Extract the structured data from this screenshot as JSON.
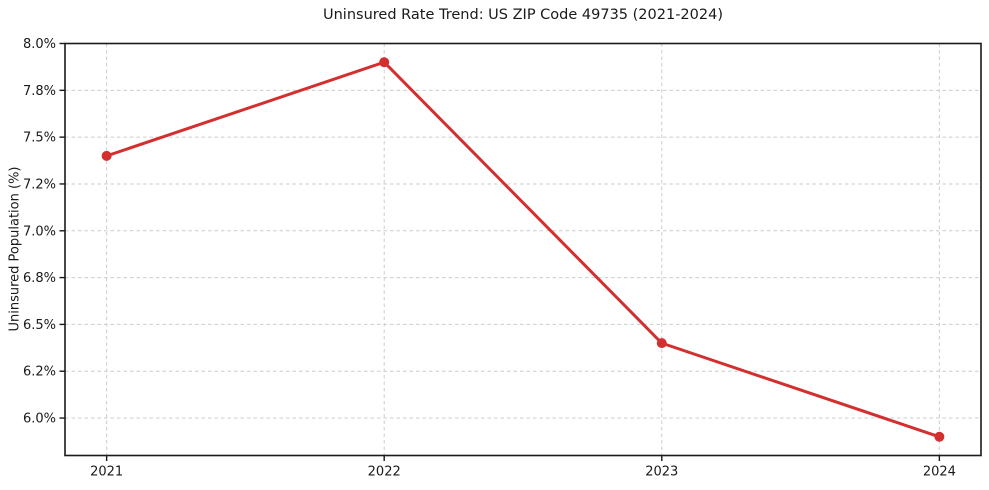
{
  "chart_data": {
    "type": "line",
    "title": "Uninsured Rate Trend: US ZIP Code 49735 (2021-2024)",
    "xlabel": "",
    "ylabel": "Uninsured Population (%)",
    "categories": [
      "2021",
      "2022",
      "2023",
      "2024"
    ],
    "values": [
      7.4,
      7.9,
      6.4,
      5.9
    ],
    "value_suffix": "%",
    "ylim": [
      5.8,
      8.0
    ],
    "ytick_values": [
      6.0,
      6.25,
      6.5,
      6.75,
      7.0,
      7.25,
      7.5,
      7.75,
      8.0
    ],
    "ytick_labels": [
      "6.0%",
      "6.2%",
      "6.5%",
      "6.8%",
      "7.0%",
      "7.2%",
      "7.5%",
      "7.8%",
      "8.0%"
    ],
    "grid": true,
    "grid_line_style": "dashed",
    "legend_position": "none",
    "marker": "circle",
    "colors": {
      "line": "#d32f2f",
      "marker": "#d32f2f",
      "grid": "#cccccc",
      "spine": "#1a1a1a",
      "text": "#1a1a1a",
      "background": "#ffffff"
    }
  }
}
